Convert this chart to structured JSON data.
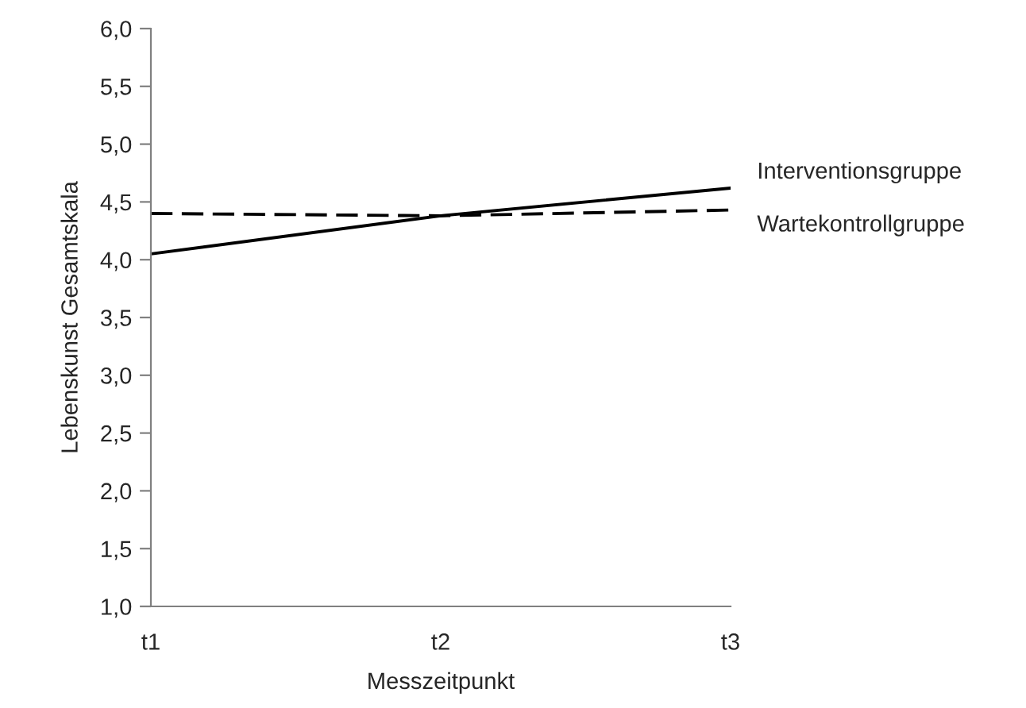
{
  "chart_data": {
    "type": "line",
    "xlabel": "Messzeitpunkt",
    "ylabel": "Lebenskunst Gesamtskala",
    "categories": [
      "t1",
      "t2",
      "t3"
    ],
    "series": [
      {
        "name": "Interventionsgruppe",
        "color": "#000000",
        "line_style": "solid",
        "values": [
          4.05,
          4.38,
          4.62
        ]
      },
      {
        "name": "Wartekontrollgruppe",
        "color": "#000000",
        "line_style": "dashed",
        "values": [
          4.4,
          4.38,
          4.43
        ]
      }
    ],
    "ylim": [
      1.0,
      6.0
    ],
    "yticks": [
      {
        "value": 1.0,
        "label": "1,0"
      },
      {
        "value": 1.5,
        "label": "1,5"
      },
      {
        "value": 2.0,
        "label": "2,0"
      },
      {
        "value": 2.5,
        "label": "2,5"
      },
      {
        "value": 3.0,
        "label": "3,0"
      },
      {
        "value": 3.5,
        "label": "3,5"
      },
      {
        "value": 4.0,
        "label": "4,0"
      },
      {
        "value": 4.5,
        "label": "4,5"
      },
      {
        "value": 5.0,
        "label": "5,0"
      },
      {
        "value": 5.5,
        "label": "5,5"
      },
      {
        "value": 6.0,
        "label": "6,0"
      }
    ],
    "grid": false,
    "legend": false,
    "marker": "none"
  }
}
